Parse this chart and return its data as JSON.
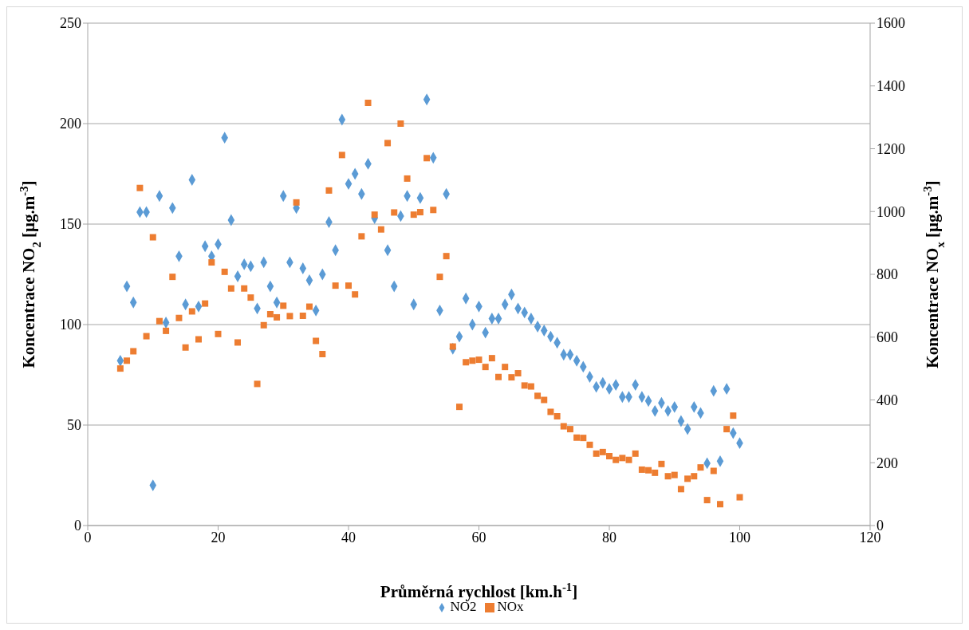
{
  "chart_data": {
    "type": "scatter",
    "xlabel": "Průměrná rychlost [km.h$^{-1}$]",
    "ylabel": "Koncentrace NO$_{2}$  [µg.m$^{-3}$]",
    "y2label": "Koncentrace NO$_{x}$  [µg.m$^{-3}$]",
    "x": [
      5,
      6,
      7,
      8,
      9,
      10,
      11,
      12,
      13,
      14,
      15,
      16,
      17,
      18,
      19,
      20,
      21,
      22,
      23,
      24,
      25,
      26,
      27,
      28,
      29,
      30,
      31,
      32,
      33,
      34,
      35,
      36,
      37,
      38,
      39,
      40,
      41,
      42,
      43,
      44,
      45,
      46,
      47,
      48,
      49,
      50,
      51,
      52,
      53,
      54,
      55,
      56,
      57,
      58,
      59,
      60,
      61,
      62,
      63,
      64,
      65,
      66,
      67,
      68,
      69,
      70,
      71,
      72,
      73,
      74,
      75,
      76,
      77,
      78,
      79,
      80,
      81,
      82,
      83,
      84,
      85,
      86,
      87,
      88,
      89,
      90,
      91,
      92,
      93,
      94,
      95,
      96,
      97,
      98,
      99,
      100
    ],
    "series": [
      {
        "name": "NO2",
        "color": "#5b9bd5",
        "marker": "diamond",
        "values": [
          82,
          119,
          111,
          156,
          156,
          20,
          164,
          101,
          158,
          134,
          110,
          172,
          109,
          139,
          134,
          140,
          193,
          152,
          124,
          130,
          129,
          108,
          131,
          119,
          111,
          164,
          131,
          158,
          128,
          122,
          107,
          125,
          151,
          137,
          202,
          170,
          175,
          165,
          180,
          153,
          null,
          137,
          119,
          154,
          164,
          110,
          163,
          212,
          183,
          107,
          165,
          88,
          94,
          113,
          100,
          109,
          96,
          103,
          103,
          110,
          115,
          108,
          106,
          103,
          99,
          97,
          94,
          91,
          85,
          85,
          82,
          79,
          74,
          69,
          71,
          68,
          70,
          64,
          64,
          70,
          64,
          62,
          57,
          61,
          57,
          59,
          52,
          48,
          59,
          56,
          31,
          67,
          32,
          68,
          46,
          41
        ]
      },
      {
        "name": "NOx",
        "color": "#ed7d31",
        "marker": "square",
        "axis": "y2",
        "values": [
          500,
          525,
          555,
          1075,
          603,
          918,
          651,
          620,
          792,
          661,
          567,
          682,
          593,
          707,
          838,
          610,
          808,
          755,
          583,
          755,
          726,
          451,
          638,
          673,
          663,
          700,
          667,
          1029,
          668,
          697,
          588,
          546,
          1067,
          764,
          1180,
          764,
          736,
          921,
          1346,
          990,
          943,
          1218,
          997,
          1280,
          1105,
          990,
          998,
          1170,
          1005,
          792,
          858,
          570,
          378,
          520,
          525,
          528,
          505,
          533,
          473,
          505,
          472,
          485,
          446,
          443,
          413,
          400,
          362,
          348,
          316,
          307,
          280,
          279,
          257,
          229,
          234,
          221,
          209,
          215,
          209,
          229,
          178,
          176,
          168,
          196,
          157,
          161,
          116,
          149,
          157,
          185,
          81,
          174,
          68,
          307,
          350,
          90
        ]
      }
    ],
    "xlim": [
      0,
      120
    ],
    "xticks": [
      0,
      20,
      40,
      60,
      80,
      100,
      120
    ],
    "ylim": [
      0,
      250
    ],
    "yticks": [
      0,
      50,
      100,
      150,
      200,
      250
    ],
    "y2lim": [
      0,
      1600
    ],
    "y2ticks": [
      0,
      200,
      400,
      600,
      800,
      1000,
      1200,
      1400,
      1600
    ],
    "grid": "y",
    "legend": "bottom"
  }
}
